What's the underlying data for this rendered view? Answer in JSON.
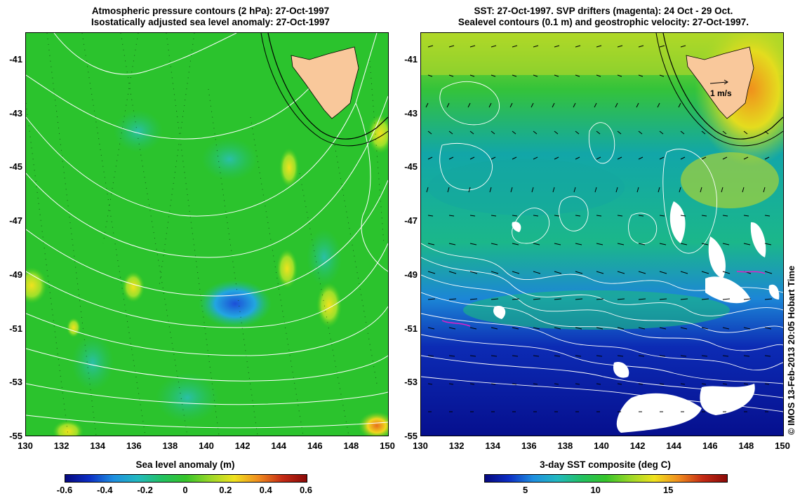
{
  "left_panel": {
    "title_line1": "Atmospheric pressure contours (2 hPa): 27-Oct-1997",
    "title_line2": "Isostatically adjusted sea level anomaly: 27-Oct-1997",
    "lon_ticks": [
      "130",
      "132",
      "134",
      "136",
      "138",
      "140",
      "142",
      "144",
      "146",
      "148",
      "150"
    ],
    "lat_ticks": [
      "-41",
      "-43",
      "-45",
      "-47",
      "-49",
      "-51",
      "-53",
      "-55"
    ],
    "colorbar_title": "Sea level anomaly (m)",
    "colorbar_ticks": [
      "-0.6",
      "-0.4",
      "-0.2",
      "0",
      "0.2",
      "0.4",
      "0.6"
    ]
  },
  "right_panel": {
    "title_line1": "SST: 27-Oct-1997. SVP drifters (magenta): 24 Oct - 29 Oct.",
    "title_line2": "Sealevel contours (0.1 m) and geostrophic velocity: 27-Oct-1997.",
    "lon_ticks": [
      "130",
      "132",
      "134",
      "136",
      "138",
      "140",
      "142",
      "144",
      "146",
      "148",
      "150"
    ],
    "lat_ticks": [
      "-41",
      "-43",
      "-45",
      "-47",
      "-49",
      "-51",
      "-53",
      "-55"
    ],
    "velocity_scale_label": "1 m/s",
    "colorbar_title": "3-day SST composite (deg C)",
    "colorbar_ticks": [
      "5",
      "10",
      "15"
    ]
  },
  "credit": "© IMOS 13-Feb-2013 20:05 Hobart Time",
  "colors": {
    "land": "#f9c89b",
    "sla_background": "#22c12a",
    "sla_low": "#1e6fd6",
    "sla_high": "#f0e21e",
    "sst_warm": "#f08c1e",
    "sst_mid": "#1fc06a",
    "sst_cold": "#08129a"
  }
}
